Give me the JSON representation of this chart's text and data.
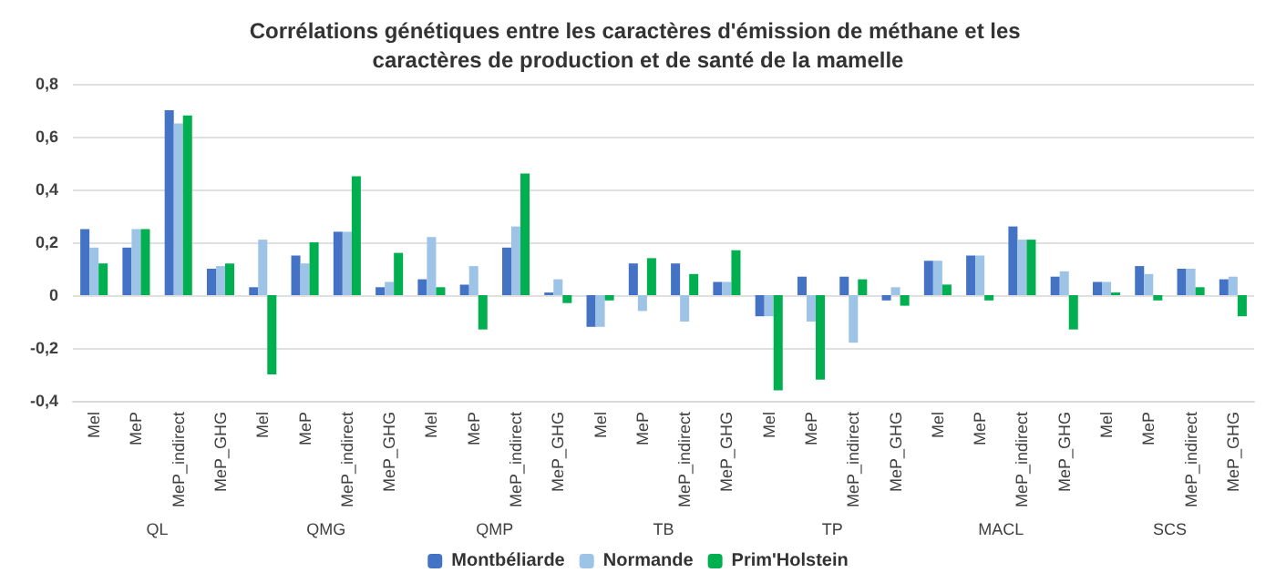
{
  "chart_data": {
    "type": "bar",
    "title": "Corrélations génétiques entre les caractères d'émission de méthane et les caractères de production et de santé de la mamelle",
    "categories": [
      "Mel",
      "MeP",
      "MeP_indirect",
      "MeP_GHG",
      "Mel",
      "MeP",
      "MeP_indirect",
      "MeP_GHG",
      "Mel",
      "MeP",
      "MeP_indirect",
      "MeP_GHG",
      "Mel",
      "MeP",
      "MeP_indirect",
      "MeP_GHG",
      "Mel",
      "MeP",
      "MeP_indirect",
      "MeP_GHG",
      "Mel",
      "MeP",
      "MeP_indirect",
      "MeP_GHG",
      "Mel",
      "MeP",
      "MeP_indirect",
      "MeP_GHG"
    ],
    "annotations": [
      "QL",
      "QMG",
      "QMP",
      "TB",
      "TP",
      "MACL",
      "SCS"
    ],
    "series": [
      {
        "name": "Montbéliarde",
        "color": "#4472c4",
        "values": [
          0.25,
          0.18,
          0.7,
          0.1,
          0.03,
          0.15,
          0.24,
          0.03,
          0.06,
          0.04,
          0.18,
          0.01,
          -0.12,
          0.12,
          0.12,
          0.05,
          -0.08,
          0.07,
          0.07,
          -0.02,
          0.13,
          0.15,
          0.26,
          0.07,
          0.05,
          0.11,
          0.1,
          0.06
        ]
      },
      {
        "name": "Normande",
        "color": "#9dc3e6",
        "values": [
          0.18,
          0.25,
          0.65,
          0.11,
          0.21,
          0.12,
          0.24,
          0.05,
          0.22,
          0.11,
          0.26,
          0.06,
          -0.12,
          -0.06,
          -0.1,
          0.05,
          -0.08,
          -0.1,
          -0.18,
          0.03,
          0.13,
          0.15,
          0.21,
          0.09,
          0.05,
          0.08,
          0.1,
          0.07
        ]
      },
      {
        "name": "Prim'Holstein",
        "color": "#00b050",
        "values": [
          0.12,
          0.25,
          0.68,
          0.12,
          -0.3,
          0.2,
          0.45,
          0.16,
          0.03,
          -0.13,
          0.46,
          -0.03,
          -0.02,
          0.14,
          0.08,
          0.17,
          -0.36,
          -0.32,
          0.06,
          -0.04,
          0.04,
          -0.02,
          0.21,
          -0.13,
          0.01,
          -0.02,
          0.03,
          -0.08
        ]
      }
    ],
    "ylim": [
      -0.4,
      0.8
    ],
    "yticks": [
      {
        "value": -0.4,
        "label": "-0,4"
      },
      {
        "value": -0.2,
        "label": "-0,2"
      },
      {
        "value": 0,
        "label": "0"
      },
      {
        "value": 0.2,
        "label": "0,2"
      },
      {
        "value": 0.4,
        "label": "0,4"
      },
      {
        "value": 0.6,
        "label": "0,6"
      },
      {
        "value": 0.8,
        "label": "0,8"
      }
    ],
    "grid": "y",
    "legend": "bottom"
  }
}
